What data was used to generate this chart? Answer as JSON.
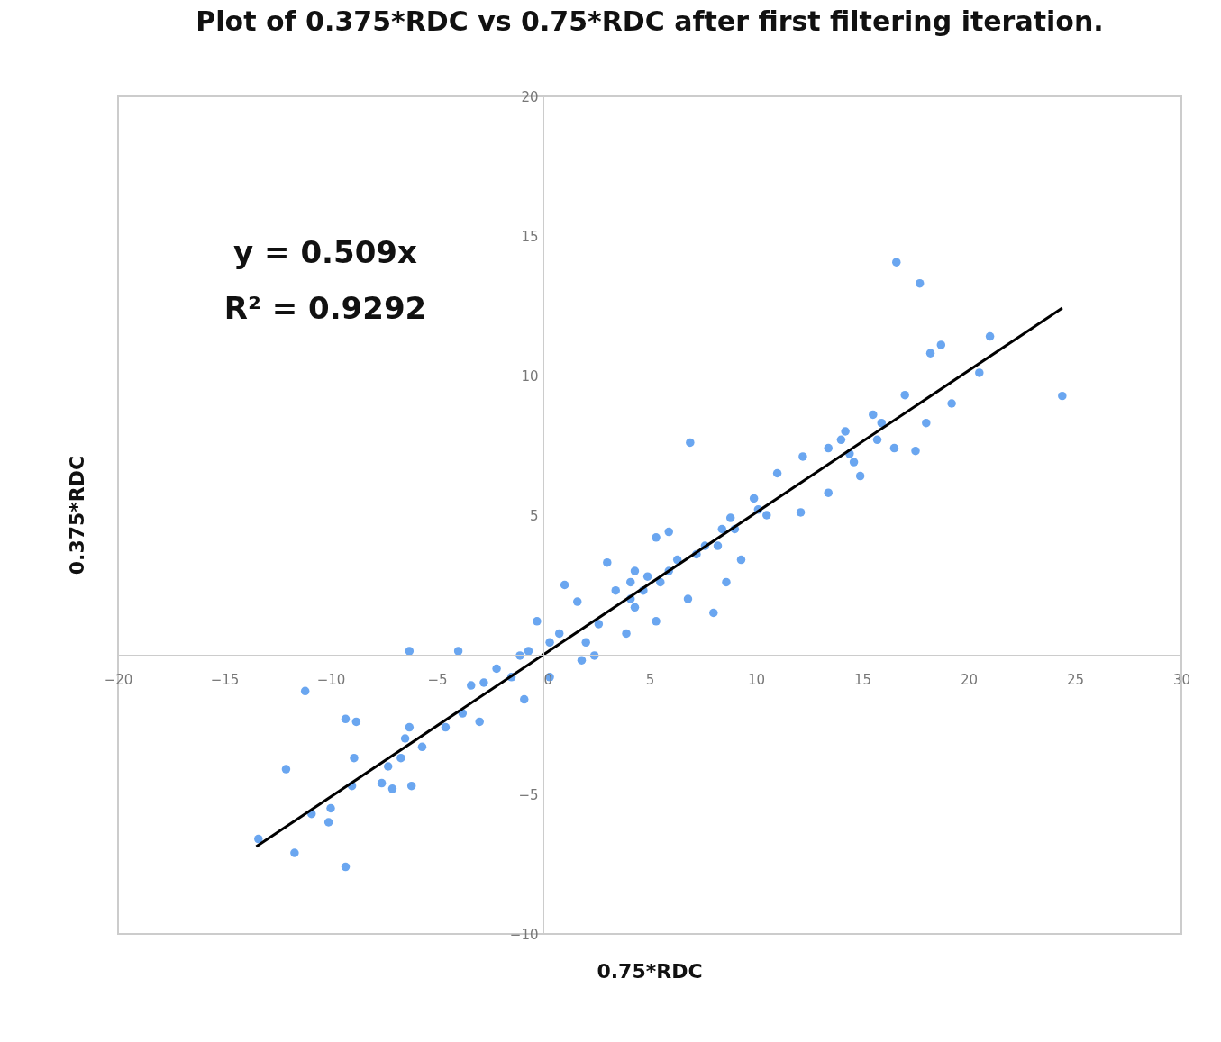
{
  "chart_data": {
    "type": "scatter",
    "title": "Plot of 0.375*RDC vs 0.75*RDC after first filtering iteration.",
    "xlabel": "0.75*RDC",
    "ylabel": "0.375*RDC",
    "annotations": [
      "y = 0.509x",
      "R² = 0.9292"
    ],
    "xlim": [
      -20,
      30
    ],
    "xticks": [
      -20,
      -15,
      -10,
      -5,
      0,
      5,
      10,
      15,
      20,
      25,
      30
    ],
    "ylim": [
      -10,
      20
    ],
    "yticks": [
      -10,
      -5,
      5,
      10,
      15,
      20
    ],
    "series": [
      {
        "marker": "circle",
        "color": "#6aa6f0",
        "x": [
          16.6,
          17.7,
          24.4,
          6.9,
          21.0,
          20.5,
          18.7,
          18.2,
          19.2,
          17.0,
          17.5,
          16.5,
          18.0,
          15.5,
          14.2,
          14.9,
          13.4,
          12.1,
          11.0,
          12.2,
          10.5,
          9.9,
          9.0,
          9.3,
          8.0,
          8.6,
          8.2,
          7.2,
          6.3,
          5.3,
          5.9,
          5.5,
          5.3,
          6.8,
          3.9,
          3.0,
          3.4,
          4.1,
          4.3,
          2.6,
          2.0,
          1.8,
          2.4,
          1.0,
          1.6,
          0.3,
          0.75,
          -0.3,
          -0.7,
          -1.1,
          0.3,
          -1.5,
          -0.9,
          -2.2,
          -2.8,
          -3.4,
          -3.0,
          -4.0,
          -4.6,
          -3.8,
          -6.3,
          -5.7,
          -6.3,
          -6.5,
          -6.7,
          -7.3,
          -6.2,
          -7.1,
          -7.6,
          -8.8,
          -9.3,
          -8.9,
          -9.0,
          -11.2,
          -12.1,
          -10.9,
          -10.0,
          -10.1,
          -11.7,
          -13.4,
          -9.3,
          5.9,
          7.6,
          8.4,
          8.8,
          10.1,
          13.4,
          14.0,
          14.4,
          14.6,
          15.7,
          15.9,
          4.7,
          4.1,
          4.3,
          4.9
        ],
        "values": [
          14.06,
          13.3,
          9.27,
          7.6,
          11.4,
          10.1,
          11.1,
          10.8,
          9.0,
          9.3,
          7.3,
          7.4,
          8.3,
          8.6,
          8.0,
          6.4,
          5.8,
          5.1,
          6.5,
          7.1,
          5.0,
          5.6,
          4.5,
          3.4,
          1.5,
          2.6,
          3.9,
          3.6,
          3.4,
          4.2,
          4.4,
          2.6,
          1.2,
          2.0,
          0.76,
          3.3,
          2.3,
          2.6,
          1.7,
          1.1,
          0.44,
          -0.2,
          -0.03,
          2.5,
          1.9,
          0.44,
          0.76,
          1.2,
          0.13,
          -0.03,
          -0.8,
          -0.8,
          -1.6,
          -0.5,
          -1.0,
          -1.1,
          -2.4,
          0.13,
          -2.6,
          -2.1,
          0.13,
          -3.3,
          -2.6,
          -3.0,
          -3.7,
          -4.0,
          -4.7,
          -4.8,
          -4.6,
          -2.4,
          -2.3,
          -3.7,
          -4.7,
          -1.3,
          -4.1,
          -5.7,
          -5.5,
          -6.0,
          -7.1,
          -6.6,
          -7.6,
          3.0,
          3.9,
          4.5,
          4.9,
          5.2,
          7.4,
          7.7,
          7.2,
          6.9,
          7.7,
          8.3,
          2.3,
          2.0,
          3.0,
          2.8
        ]
      },
      {
        "type": "line",
        "color": "#000000",
        "x": [
          -13.5,
          24.4
        ],
        "values": [
          -6.87,
          12.42
        ]
      }
    ]
  }
}
